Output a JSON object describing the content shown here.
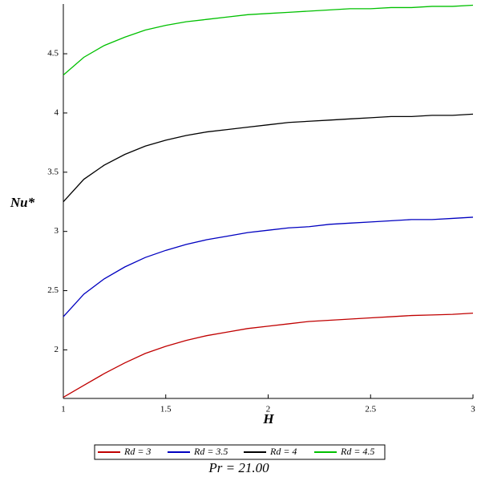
{
  "chart_data": {
    "type": "line",
    "x_label": "H",
    "y_label": "Nu*",
    "caption": "Pr = 21.00",
    "x": [
      1,
      1.1,
      1.2,
      1.3,
      1.4,
      1.5,
      1.6,
      1.7,
      1.8,
      1.9,
      2,
      2.1,
      2.2,
      2.3,
      2.4,
      2.5,
      2.6,
      2.7,
      2.8,
      2.9,
      3
    ],
    "series": [
      {
        "name": "Rd = 3",
        "color": "#c00000",
        "values": [
          1.6,
          1.7,
          1.8,
          1.89,
          1.97,
          2.03,
          2.08,
          2.12,
          2.15,
          2.18,
          2.2,
          2.22,
          2.24,
          2.25,
          2.26,
          2.27,
          2.28,
          2.29,
          2.295,
          2.3,
          2.31
        ]
      },
      {
        "name": "Rd = 3.5",
        "color": "#0000c0",
        "values": [
          2.28,
          2.47,
          2.6,
          2.7,
          2.78,
          2.84,
          2.89,
          2.93,
          2.96,
          2.99,
          3.01,
          3.03,
          3.04,
          3.06,
          3.07,
          3.08,
          3.09,
          3.1,
          3.1,
          3.11,
          3.12
        ]
      },
      {
        "name": "Rd = 4",
        "color": "#000000",
        "values": [
          3.25,
          3.44,
          3.56,
          3.65,
          3.72,
          3.77,
          3.81,
          3.84,
          3.86,
          3.88,
          3.9,
          3.92,
          3.93,
          3.94,
          3.95,
          3.96,
          3.97,
          3.97,
          3.98,
          3.98,
          3.99
        ]
      },
      {
        "name": "Rd = 4.5",
        "color": "#00c000",
        "values": [
          4.32,
          4.47,
          4.57,
          4.64,
          4.7,
          4.74,
          4.77,
          4.79,
          4.81,
          4.83,
          4.84,
          4.85,
          4.86,
          4.87,
          4.88,
          4.88,
          4.89,
          4.89,
          4.9,
          4.9,
          4.91
        ]
      }
    ],
    "xlim": [
      1,
      3
    ],
    "xticks": [
      1,
      1.5,
      2,
      2.5,
      3
    ],
    "ylim": [
      1.59,
      4.92
    ],
    "yticks": [
      2,
      2.5,
      3,
      3.5,
      4,
      4.5
    ],
    "legend": "bottom"
  }
}
